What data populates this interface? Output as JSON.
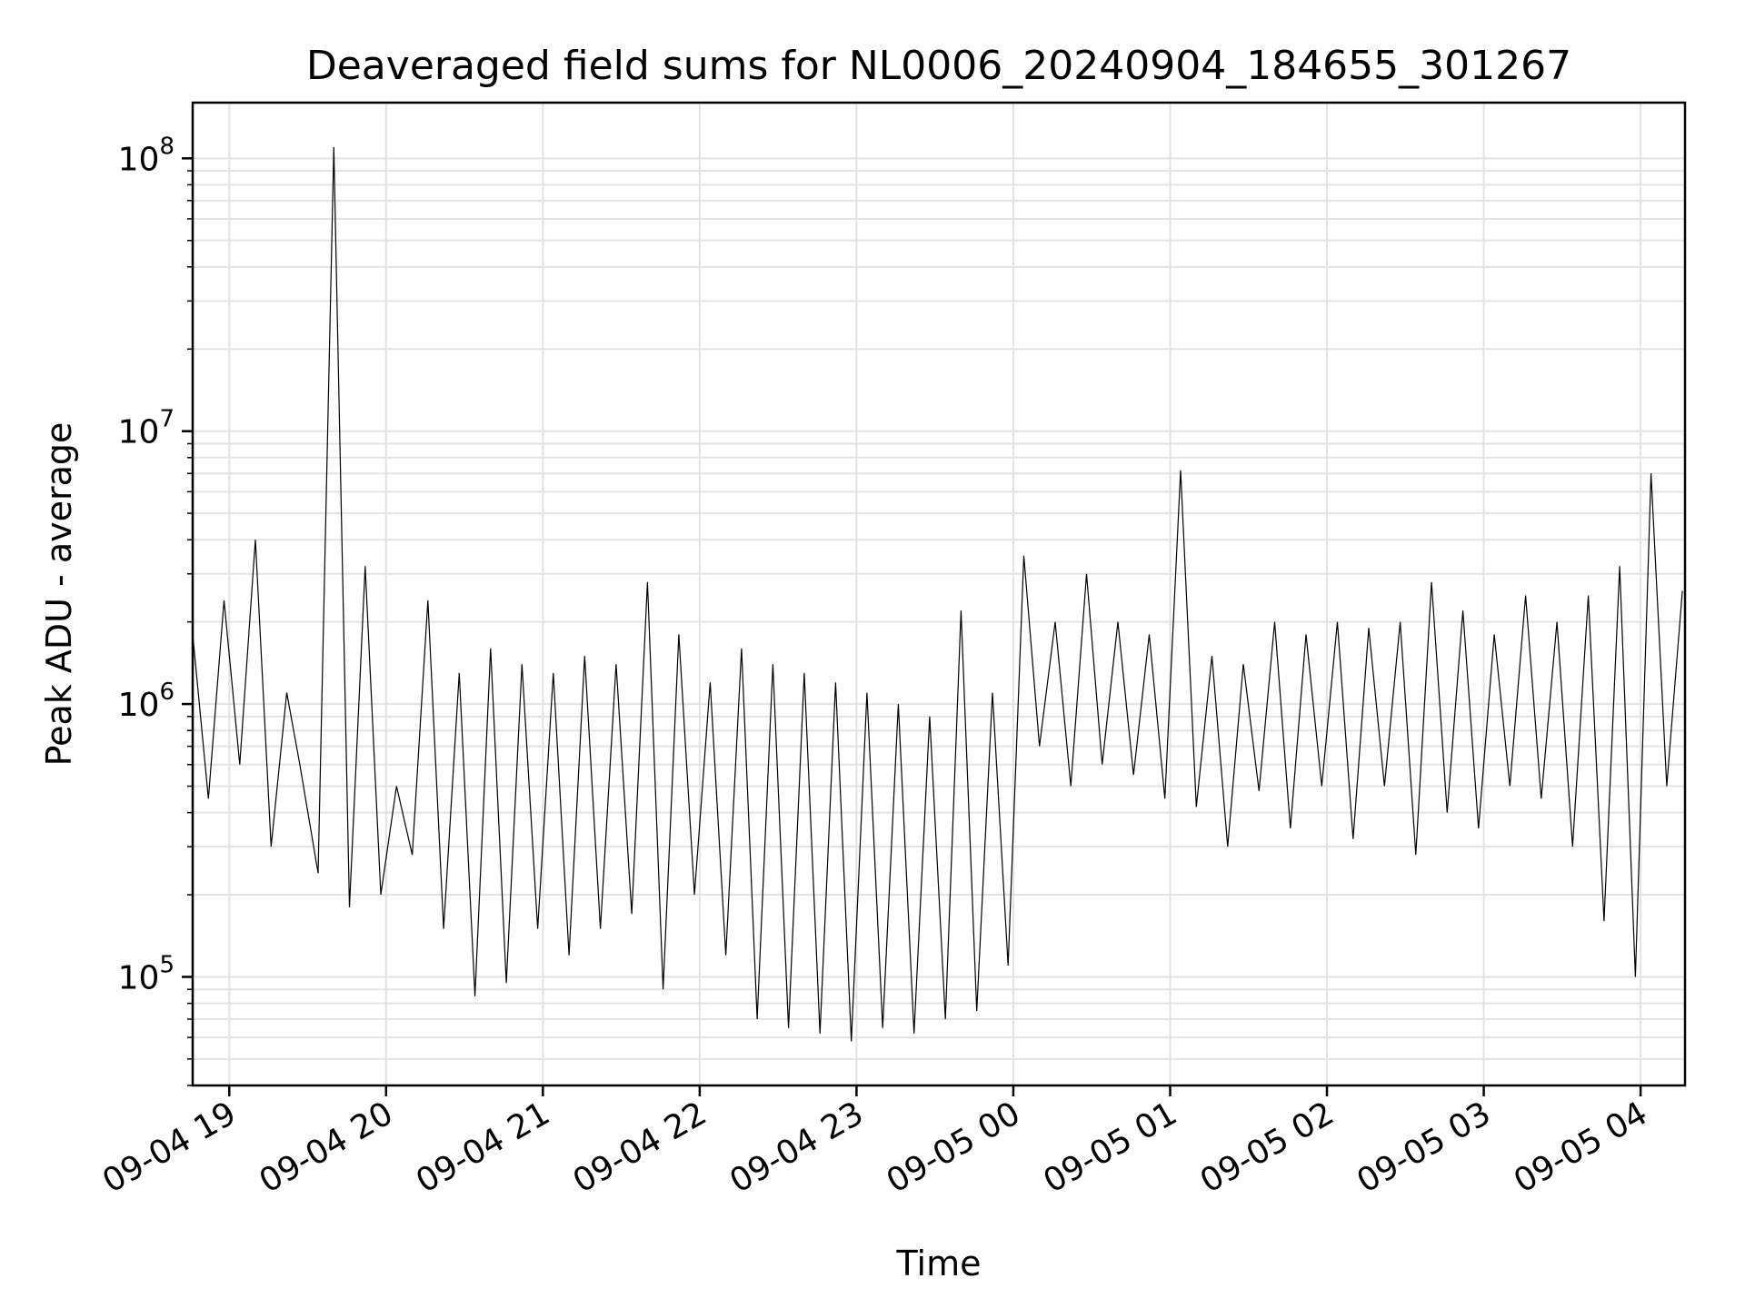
{
  "chart_data": {
    "type": "line",
    "title": "Deaveraged field sums for NL0006_20240904_184655_301267",
    "xlabel": "Time",
    "ylabel": "Peak ADU - average",
    "y_scale": "log",
    "ylim": [
      40000,
      160000000
    ],
    "xlim": [
      "2024-09-04 18:46",
      "2024-09-05 04:17"
    ],
    "x_ticks": [
      {
        "value": "2024-09-04 19:00",
        "label": "09-04 19"
      },
      {
        "value": "2024-09-04 20:00",
        "label": "09-04 20"
      },
      {
        "value": "2024-09-04 21:00",
        "label": "09-04 21"
      },
      {
        "value": "2024-09-04 22:00",
        "label": "09-04 22"
      },
      {
        "value": "2024-09-04 23:00",
        "label": "09-04 23"
      },
      {
        "value": "2024-09-05 00:00",
        "label": "09-05 00"
      },
      {
        "value": "2024-09-05 01:00",
        "label": "09-05 01"
      },
      {
        "value": "2024-09-05 02:00",
        "label": "09-05 02"
      },
      {
        "value": "2024-09-05 03:00",
        "label": "09-05 03"
      },
      {
        "value": "2024-09-05 04:00",
        "label": "09-05 04"
      }
    ],
    "y_ticks": [
      {
        "value": 100000,
        "base": "10",
        "exp": "5"
      },
      {
        "value": 1000000,
        "base": "10",
        "exp": "6"
      },
      {
        "value": 10000000,
        "base": "10",
        "exp": "7"
      },
      {
        "value": 100000000,
        "base": "10",
        "exp": "8"
      }
    ],
    "grid": true,
    "series": [
      {
        "color": "#000000",
        "x": [
          "2024-09-04 18:46",
          "2024-09-04 18:52",
          "2024-09-04 18:58",
          "2024-09-04 19:04",
          "2024-09-04 19:10",
          "2024-09-04 19:16",
          "2024-09-04 19:22",
          "2024-09-04 19:27",
          "2024-09-04 19:34",
          "2024-09-04 19:40",
          "2024-09-04 19:46",
          "2024-09-04 19:52",
          "2024-09-04 19:58",
          "2024-09-04 20:04",
          "2024-09-04 20:10",
          "2024-09-04 20:16",
          "2024-09-04 20:22",
          "2024-09-04 20:28",
          "2024-09-04 20:34",
          "2024-09-04 20:40",
          "2024-09-04 20:46",
          "2024-09-04 20:52",
          "2024-09-04 20:58",
          "2024-09-04 21:04",
          "2024-09-04 21:10",
          "2024-09-04 21:16",
          "2024-09-04 21:22",
          "2024-09-04 21:28",
          "2024-09-04 21:34",
          "2024-09-04 21:40",
          "2024-09-04 21:46",
          "2024-09-04 21:52",
          "2024-09-04 21:58",
          "2024-09-04 22:04",
          "2024-09-04 22:10",
          "2024-09-04 22:16",
          "2024-09-04 22:22",
          "2024-09-04 22:28",
          "2024-09-04 22:34",
          "2024-09-04 22:40",
          "2024-09-04 22:46",
          "2024-09-04 22:52",
          "2024-09-04 22:58",
          "2024-09-04 23:04",
          "2024-09-04 23:10",
          "2024-09-04 23:16",
          "2024-09-04 23:22",
          "2024-09-04 23:28",
          "2024-09-04 23:34",
          "2024-09-04 23:40",
          "2024-09-04 23:46",
          "2024-09-04 23:52",
          "2024-09-04 23:58",
          "2024-09-05 00:04",
          "2024-09-05 00:10",
          "2024-09-05 00:16",
          "2024-09-05 00:22",
          "2024-09-05 00:28",
          "2024-09-05 00:34",
          "2024-09-05 00:40",
          "2024-09-05 00:46",
          "2024-09-05 00:52",
          "2024-09-05 00:58",
          "2024-09-05 01:04",
          "2024-09-05 01:10",
          "2024-09-05 01:16",
          "2024-09-05 01:22",
          "2024-09-05 01:28",
          "2024-09-05 01:34",
          "2024-09-05 01:40",
          "2024-09-05 01:46",
          "2024-09-05 01:52",
          "2024-09-05 01:58",
          "2024-09-05 02:04",
          "2024-09-05 02:10",
          "2024-09-05 02:16",
          "2024-09-05 02:22",
          "2024-09-05 02:28",
          "2024-09-05 02:34",
          "2024-09-05 02:40",
          "2024-09-05 02:46",
          "2024-09-05 02:52",
          "2024-09-05 02:58",
          "2024-09-05 03:04",
          "2024-09-05 03:10",
          "2024-09-05 03:16",
          "2024-09-05 03:22",
          "2024-09-05 03:28",
          "2024-09-05 03:34",
          "2024-09-05 03:40",
          "2024-09-05 03:46",
          "2024-09-05 03:52",
          "2024-09-05 03:58",
          "2024-09-05 04:04",
          "2024-09-05 04:10",
          "2024-09-05 04:16"
        ],
        "values": [
          1800000,
          450000,
          2400000,
          600000,
          4000000,
          300000,
          1100000,
          600000,
          240000,
          110000000,
          180000,
          3200000,
          200000,
          500000,
          280000,
          2400000,
          150000,
          1300000,
          85000,
          1600000,
          95000,
          1400000,
          150000,
          1300000,
          120000,
          1500000,
          150000,
          1400000,
          170000,
          2800000,
          90000,
          1800000,
          200000,
          1200000,
          120000,
          1600000,
          70000,
          1400000,
          65000,
          1300000,
          62000,
          1200000,
          58000,
          1100000,
          65000,
          1000000,
          62000,
          900000,
          70000,
          2200000,
          75000,
          1100000,
          110000,
          3500000,
          700000,
          2000000,
          500000,
          3000000,
          600000,
          2000000,
          550000,
          1800000,
          450000,
          7200000,
          420000,
          1500000,
          300000,
          1400000,
          480000,
          2000000,
          350000,
          1800000,
          500000,
          2000000,
          320000,
          1900000,
          500000,
          2000000,
          280000,
          2800000,
          400000,
          2200000,
          350000,
          1800000,
          500000,
          2500000,
          450000,
          2000000,
          300000,
          2500000,
          160000,
          3200000,
          100000,
          7000000,
          500000,
          2600000
        ]
      }
    ]
  }
}
